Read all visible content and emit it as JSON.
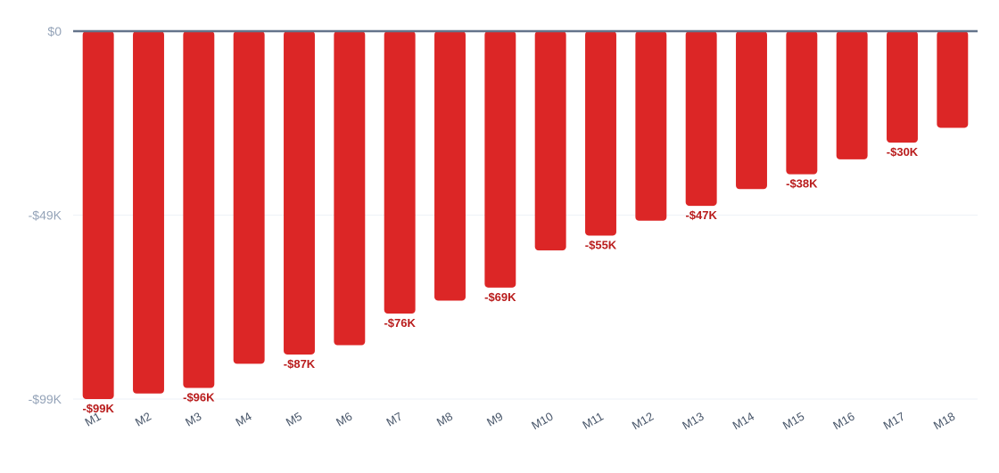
{
  "chart_data": {
    "type": "bar",
    "title": "",
    "xlabel": "",
    "ylabel": "",
    "categories": [
      "M1",
      "M2",
      "M3",
      "M4",
      "M5",
      "M6",
      "M7",
      "M8",
      "M9",
      "M10",
      "M11",
      "M12",
      "M13",
      "M14",
      "M15",
      "M16",
      "M17",
      "M18"
    ],
    "values": [
      -99,
      -97.5,
      -96,
      -89.5,
      -87,
      -84.5,
      -76,
      -72.5,
      -69,
      -59,
      -55,
      -51,
      -47,
      -42.5,
      -38.5,
      -34.5,
      -30,
      -26
    ],
    "value_unit": "K USD",
    "ylim": [
      -99,
      0
    ],
    "y_ticks": [
      {
        "value": 0,
        "label": "$0"
      },
      {
        "value": -49.5,
        "label": "-$49K"
      },
      {
        "value": -99,
        "label": "-$99K"
      }
    ],
    "data_labels": [
      {
        "index": 0,
        "label": "-$99K"
      },
      {
        "index": 2,
        "label": "-$96K"
      },
      {
        "index": 4,
        "label": "-$87K"
      },
      {
        "index": 6,
        "label": "-$76K"
      },
      {
        "index": 8,
        "label": "-$69K"
      },
      {
        "index": 10,
        "label": "-$55K"
      },
      {
        "index": 12,
        "label": "-$47K"
      },
      {
        "index": 14,
        "label": "-$38K"
      },
      {
        "index": 16,
        "label": "-$30K"
      }
    ],
    "grid": true,
    "legend": "none",
    "colors": {
      "bar": "#dc2626",
      "label": "#b91c1c",
      "zero_line": "#64748b",
      "grid": "#eef2f7"
    }
  }
}
